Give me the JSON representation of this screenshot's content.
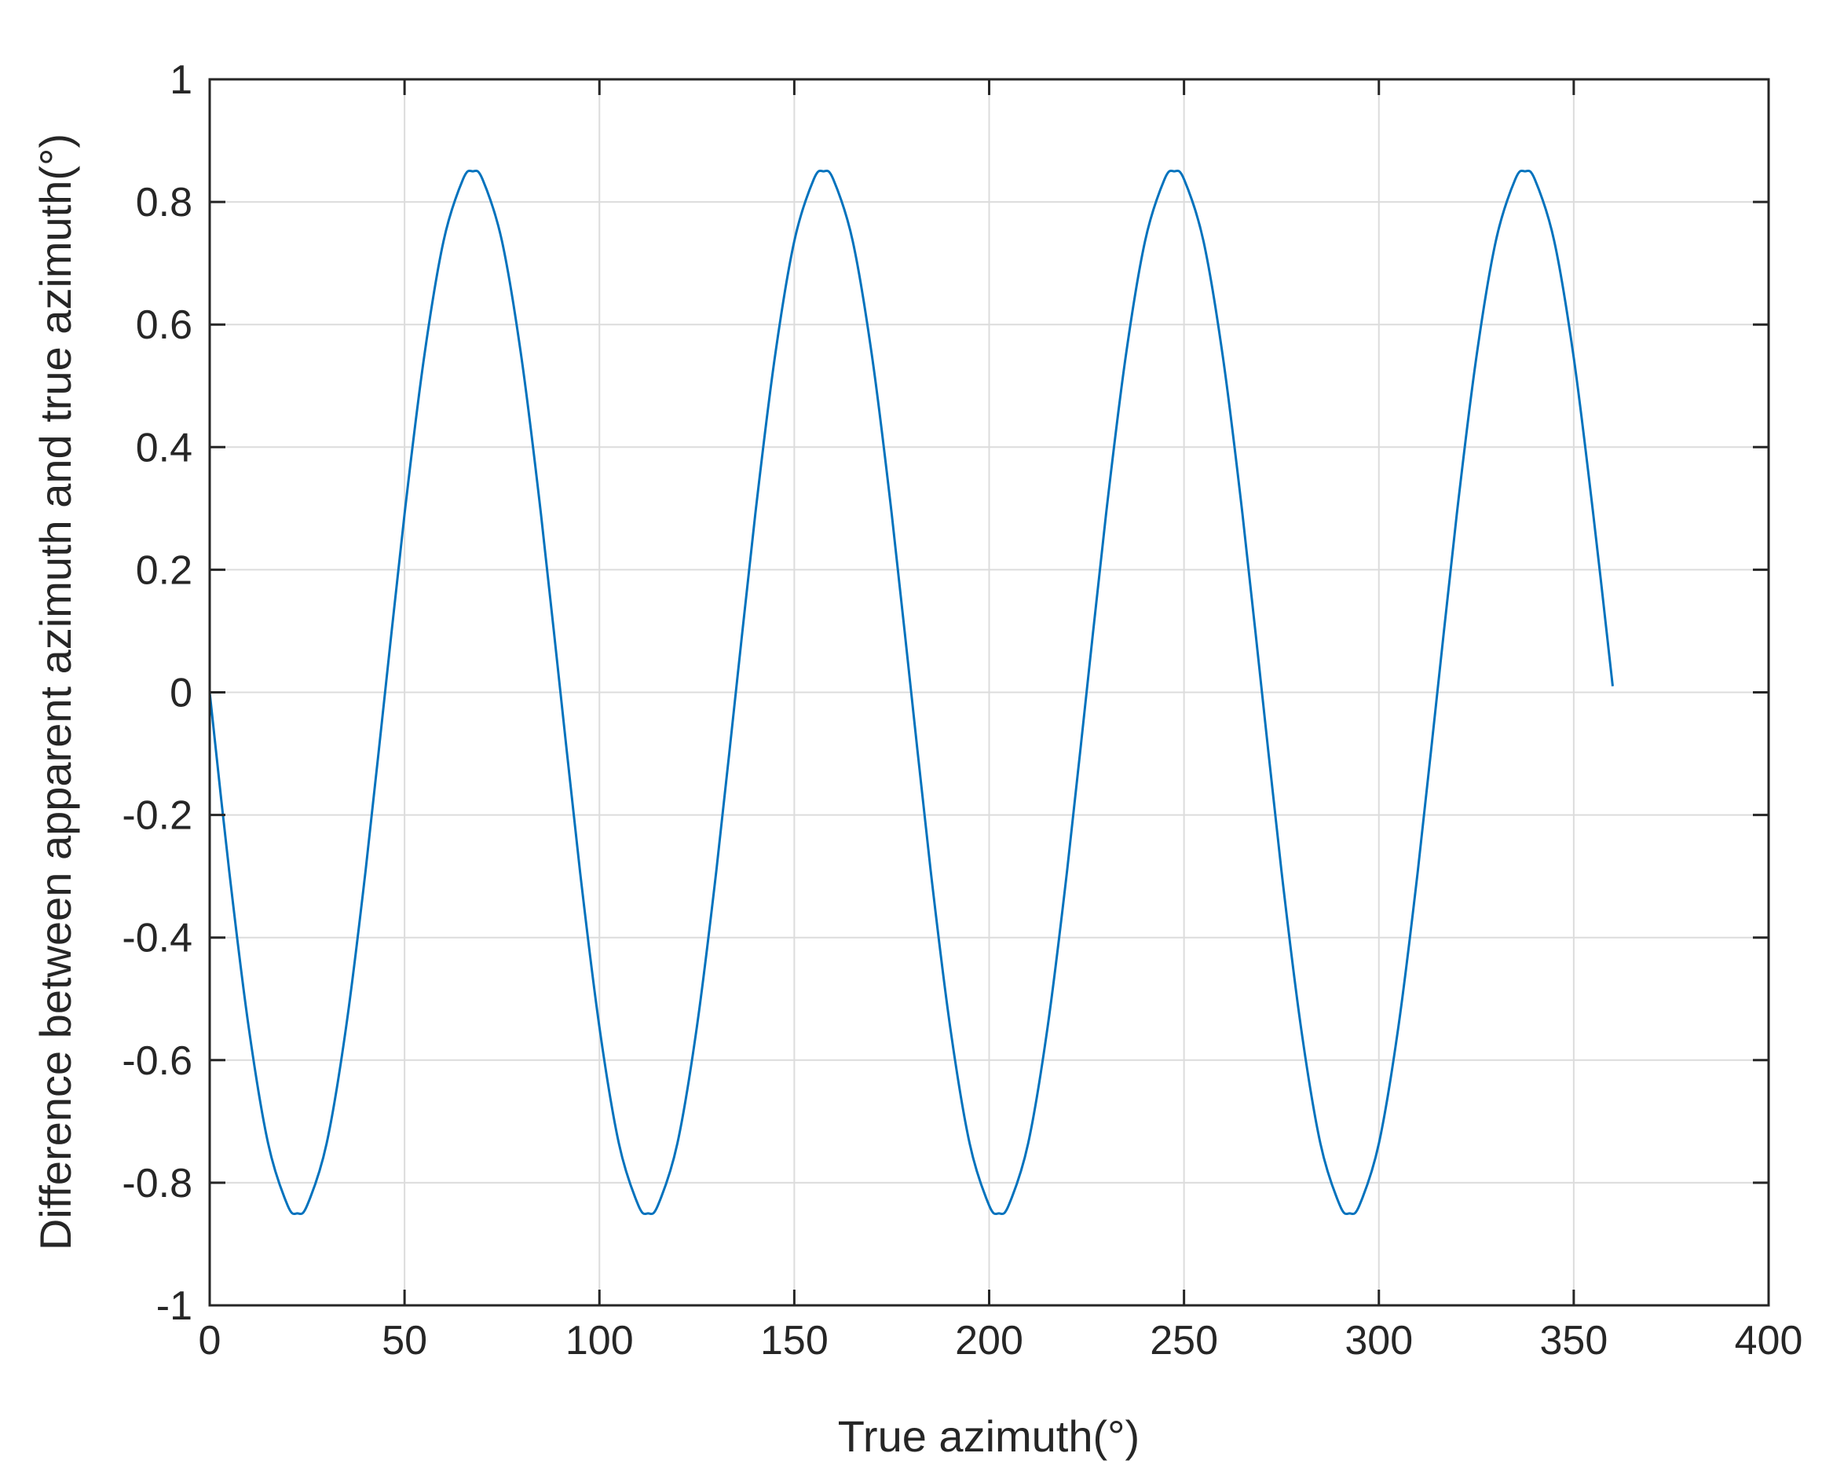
{
  "chart_data": {
    "type": "line",
    "title": "",
    "xlabel": "True azimuth(°)",
    "ylabel": "Difference between apparent azimuth and true azimuth(°)",
    "xlim": [
      0,
      400
    ],
    "ylim": [
      -1,
      1
    ],
    "xticks": [
      0,
      50,
      100,
      150,
      200,
      250,
      300,
      350,
      400
    ],
    "yticks": [
      -1,
      -0.8,
      -0.6,
      -0.4,
      -0.2,
      0,
      0.2,
      0.4,
      0.6,
      0.8,
      1
    ],
    "xtick_labels": [
      "0",
      "50",
      "100",
      "150",
      "200",
      "250",
      "300",
      "350",
      "400"
    ],
    "ytick_labels": [
      "-1",
      "-0.8",
      "-0.6",
      "-0.4",
      "-0.2",
      "0",
      "0.2",
      "0.4",
      "0.6",
      "0.8",
      "1"
    ],
    "grid": true,
    "legend": "none",
    "series": [
      {
        "color": "#0072BD",
        "x": [
          0,
          5,
          10,
          15,
          20,
          22.5,
          25,
          30,
          35,
          40,
          45,
          50,
          55,
          60,
          65,
          67.5,
          70,
          75,
          80,
          85,
          90,
          95,
          100,
          105,
          110,
          112.5,
          115,
          120,
          125,
          130,
          135,
          140,
          145,
          150,
          155,
          157.5,
          160,
          165,
          170,
          175,
          180,
          185,
          190,
          195,
          200,
          202.5,
          205,
          210,
          215,
          220,
          225,
          230,
          235,
          240,
          245,
          247.5,
          250,
          255,
          260,
          265,
          270,
          275,
          280,
          285,
          290,
          292.5,
          295,
          300,
          305,
          310,
          315,
          320,
          325,
          330,
          335,
          337.5,
          340,
          345,
          350,
          355,
          360
        ],
        "y": [
          0,
          -0.291,
          -0.546,
          -0.736,
          -0.837,
          -0.85,
          -0.837,
          -0.736,
          -0.546,
          -0.291,
          0,
          0.291,
          0.546,
          0.736,
          0.837,
          0.85,
          0.837,
          0.736,
          0.546,
          0.291,
          0,
          -0.291,
          -0.546,
          -0.736,
          -0.837,
          -0.85,
          -0.837,
          -0.736,
          -0.546,
          -0.291,
          0,
          0.291,
          0.546,
          0.736,
          0.837,
          0.85,
          0.837,
          0.736,
          0.546,
          0.291,
          0,
          -0.291,
          -0.546,
          -0.736,
          -0.837,
          -0.85,
          -0.837,
          -0.736,
          -0.546,
          -0.291,
          0,
          0.291,
          0.546,
          0.736,
          0.837,
          0.85,
          0.837,
          0.736,
          0.546,
          0.291,
          0,
          -0.291,
          -0.546,
          -0.736,
          -0.837,
          -0.85,
          -0.837,
          -0.736,
          -0.546,
          -0.291,
          0,
          0.291,
          0.546,
          0.736,
          0.837,
          0.85,
          0.837,
          0.736,
          0.546,
          0.291,
          0.01
        ]
      }
    ]
  }
}
